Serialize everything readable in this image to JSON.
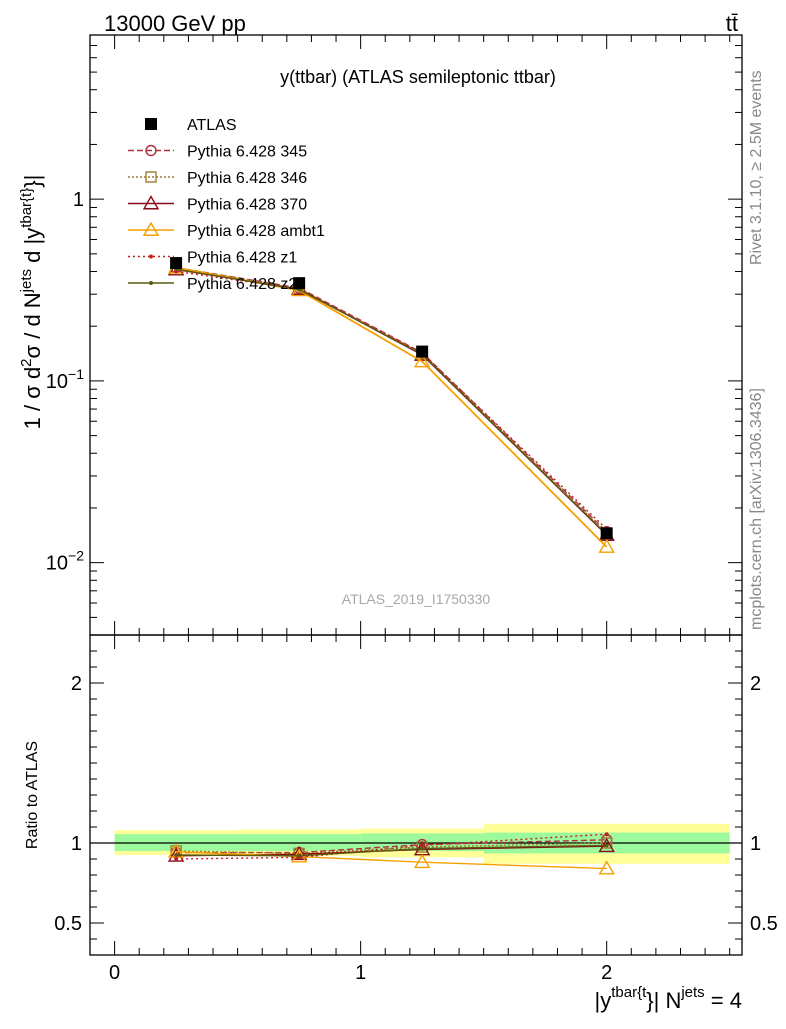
{
  "header": {
    "left": "13000 GeV pp",
    "right": "tt̄"
  },
  "side_labels": {
    "rivet": "Rivet 3.1.10, ≥ 2.5M events",
    "mcplots": "mcplots.cern.ch [arXiv:1306.3436]"
  },
  "chart_data": [
    {
      "type": "line",
      "panel": "main",
      "title": "y(ttbar) (ATLAS semileptonic ttbar)",
      "watermark": "ATLAS_2019_I1750330",
      "ylabel": {
        "base": "1 / σ d",
        "sup1": "2",
        "mid": "σ / d N",
        "sup2": "jets",
        "end": " d |y",
        "sup3": "tbar{t}",
        "tail": "}|"
      },
      "yscale": "log",
      "xlim": [
        -0.1,
        2.55
      ],
      "ylim": [
        0.004,
        8
      ],
      "yticks": [
        {
          "value": 1,
          "base": "1",
          "exp": ""
        },
        {
          "value": 0.1,
          "base": "10",
          "exp": "−1"
        },
        {
          "value": 0.01,
          "base": "10",
          "exp": "−2"
        }
      ],
      "legend_position": "top-left",
      "x": [
        0.25,
        0.75,
        1.25,
        2.0
      ],
      "series": [
        {
          "name": "ATLAS",
          "color": "#000000",
          "marker": "filled-square",
          "dash": "",
          "values": [
            0.445,
            0.345,
            0.145,
            0.0145
          ]
        },
        {
          "name": "Pythia 6.428 345",
          "color": "#b03040",
          "marker": "open-circle",
          "dash": "6,3",
          "values": [
            0.42,
            0.325,
            0.143,
            0.0148
          ]
        },
        {
          "name": "Pythia 6.428 346",
          "color": "#a07a30",
          "marker": "open-square",
          "dash": "2,2",
          "values": [
            0.42,
            0.322,
            0.141,
            0.0145
          ]
        },
        {
          "name": "Pythia 6.428 370",
          "color": "#8b0a1a",
          "marker": "open-triangle",
          "dash": "",
          "values": [
            0.41,
            0.32,
            0.139,
            0.0142
          ]
        },
        {
          "name": "Pythia 6.428 ambt1",
          "color": "#f5a000",
          "marker": "open-triangle",
          "dash": "",
          "values": [
            0.42,
            0.315,
            0.128,
            0.0122
          ]
        },
        {
          "name": "Pythia 6.428 z1",
          "color": "#c81e1e",
          "marker": "small-dot",
          "dash": "2,3",
          "values": [
            0.4,
            0.32,
            0.142,
            0.0153
          ]
        },
        {
          "name": "Pythia 6.428 z2",
          "color": "#5a5a10",
          "marker": "small-dot",
          "dash": "",
          "values": [
            0.412,
            0.318,
            0.14,
            0.0143
          ]
        }
      ]
    },
    {
      "type": "line",
      "panel": "ratio",
      "ylabel": "Ratio to ATLAS",
      "xlabel": {
        "pre": "|y",
        "sup": "tbar{t",
        "mid": "}| N",
        "sup2": "jets",
        "post": " = 4"
      },
      "xlim": [
        -0.1,
        2.55
      ],
      "ylim": [
        0.3,
        2.3
      ],
      "xticks": [
        "0",
        "1",
        "2"
      ],
      "yticks": [
        "0.5",
        "1",
        "2"
      ],
      "bins": [
        {
          "lo": 0.0,
          "hi": 0.5,
          "stat": [
            0.95,
            1.055
          ],
          "total": [
            0.925,
            1.08
          ]
        },
        {
          "lo": 0.5,
          "hi": 1.0,
          "stat": [
            0.95,
            1.055
          ],
          "total": [
            0.92,
            1.085
          ]
        },
        {
          "lo": 1.0,
          "hi": 1.5,
          "stat": [
            0.95,
            1.06
          ],
          "total": [
            0.91,
            1.09
          ]
        },
        {
          "lo": 1.5,
          "hi": 2.5,
          "stat": [
            0.935,
            1.065
          ],
          "total": [
            0.87,
            1.12
          ]
        }
      ],
      "x": [
        0.25,
        0.75,
        1.25,
        2.0
      ],
      "series": [
        {
          "name": "Pythia 6.428 345",
          "color": "#b03040",
          "marker": "open-circle",
          "dash": "6,3",
          "values": [
            0.94,
            0.94,
            0.99,
            1.02
          ]
        },
        {
          "name": "Pythia 6.428 346",
          "color": "#a07a30",
          "marker": "open-square",
          "dash": "2,2",
          "values": [
            0.95,
            0.935,
            0.975,
            1.0
          ]
        },
        {
          "name": "Pythia 6.428 370",
          "color": "#8b0a1a",
          "marker": "open-triangle",
          "dash": "",
          "values": [
            0.92,
            0.93,
            0.96,
            0.98
          ]
        },
        {
          "name": "Pythia 6.428 ambt1",
          "color": "#f5a000",
          "marker": "open-triangle",
          "dash": "",
          "values": [
            0.945,
            0.915,
            0.88,
            0.84
          ]
        },
        {
          "name": "Pythia 6.428 z1",
          "color": "#c81e1e",
          "marker": "small-dot",
          "dash": "2,3",
          "values": [
            0.9,
            0.91,
            0.985,
            1.055
          ]
        },
        {
          "name": "Pythia 6.428 z2",
          "color": "#5a5a10",
          "marker": "small-dot",
          "dash": "",
          "values": [
            0.925,
            0.92,
            0.965,
            0.985
          ]
        }
      ]
    }
  ]
}
